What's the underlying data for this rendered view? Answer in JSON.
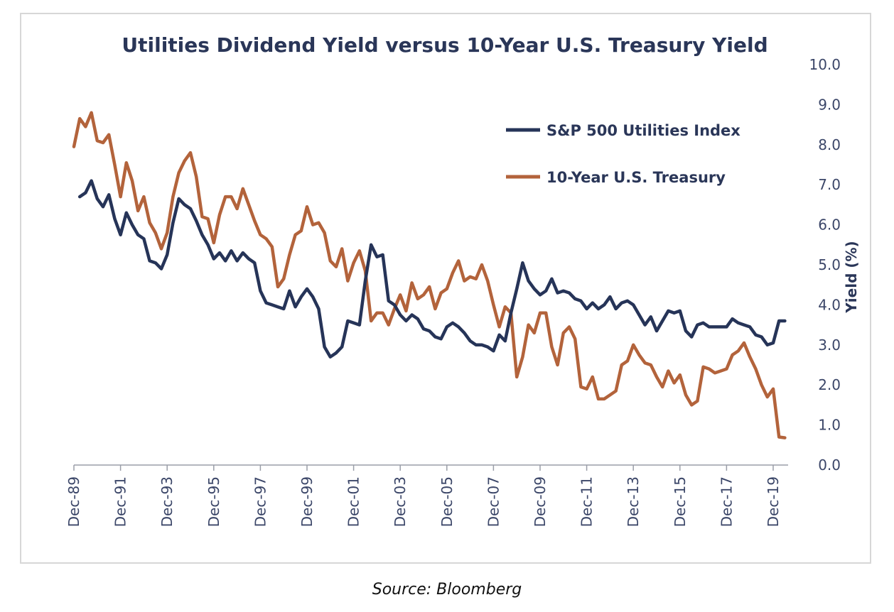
{
  "source": "Source: Bloomberg",
  "colors": {
    "utilities": "#263458",
    "treasury": "#b3633b",
    "axis": "#9a9ea8",
    "text": "#2a3658"
  },
  "chart_data": {
    "type": "line",
    "title": "Utilities Dividend Yield versus 10-Year U.S. Treasury Yield",
    "xlabel": "",
    "ylabel": "Yield (%)",
    "y_axis_side": "right",
    "ylim": [
      0,
      10
    ],
    "yticks": [
      "0.0",
      "1.0",
      "2.0",
      "3.0",
      "4.0",
      "5.0",
      "6.0",
      "7.0",
      "8.0",
      "9.0",
      "10.0"
    ],
    "xlim": [
      1989.92,
      2020.5
    ],
    "xticks": [
      {
        "x": 1989.92,
        "label": "Dec-89"
      },
      {
        "x": 1991.92,
        "label": "Dec-91"
      },
      {
        "x": 1993.92,
        "label": "Dec-93"
      },
      {
        "x": 1995.92,
        "label": "Dec-95"
      },
      {
        "x": 1997.92,
        "label": "Dec-97"
      },
      {
        "x": 1999.92,
        "label": "Dec-99"
      },
      {
        "x": 2001.92,
        "label": "Dec-01"
      },
      {
        "x": 2003.92,
        "label": "Dec-03"
      },
      {
        "x": 2005.92,
        "label": "Dec-05"
      },
      {
        "x": 2007.92,
        "label": "Dec-07"
      },
      {
        "x": 2009.92,
        "label": "Dec-09"
      },
      {
        "x": 2011.92,
        "label": "Dec-11"
      },
      {
        "x": 2013.92,
        "label": "Dec-13"
      },
      {
        "x": 2015.92,
        "label": "Dec-15"
      },
      {
        "x": 2017.92,
        "label": "Dec-17"
      },
      {
        "x": 2019.92,
        "label": "Dec-19"
      }
    ],
    "legend": "upper-right-inside",
    "grid": false,
    "series": [
      {
        "name": "S&P 500 Utilities Index",
        "color": "#263458",
        "points": [
          [
            1990.17,
            6.7
          ],
          [
            1990.42,
            6.8
          ],
          [
            1990.67,
            7.1
          ],
          [
            1990.92,
            6.65
          ],
          [
            1991.17,
            6.45
          ],
          [
            1991.42,
            6.75
          ],
          [
            1991.67,
            6.15
          ],
          [
            1991.92,
            5.75
          ],
          [
            1992.17,
            6.3
          ],
          [
            1992.42,
            6.0
          ],
          [
            1992.67,
            5.75
          ],
          [
            1992.92,
            5.65
          ],
          [
            1993.17,
            5.1
          ],
          [
            1993.42,
            5.05
          ],
          [
            1993.67,
            4.9
          ],
          [
            1993.92,
            5.25
          ],
          [
            1994.17,
            6.05
          ],
          [
            1994.42,
            6.65
          ],
          [
            1994.67,
            6.5
          ],
          [
            1994.92,
            6.4
          ],
          [
            1995.17,
            6.1
          ],
          [
            1995.42,
            5.75
          ],
          [
            1995.67,
            5.5
          ],
          [
            1995.92,
            5.15
          ],
          [
            1996.17,
            5.3
          ],
          [
            1996.42,
            5.1
          ],
          [
            1996.67,
            5.35
          ],
          [
            1996.92,
            5.1
          ],
          [
            1997.17,
            5.3
          ],
          [
            1997.42,
            5.15
          ],
          [
            1997.67,
            5.05
          ],
          [
            1997.92,
            4.35
          ],
          [
            1998.17,
            4.05
          ],
          [
            1998.42,
            4.0
          ],
          [
            1998.67,
            3.95
          ],
          [
            1998.92,
            3.9
          ],
          [
            1999.17,
            4.35
          ],
          [
            1999.42,
            3.95
          ],
          [
            1999.67,
            4.2
          ],
          [
            1999.92,
            4.4
          ],
          [
            2000.17,
            4.2
          ],
          [
            2000.42,
            3.9
          ],
          [
            2000.67,
            2.95
          ],
          [
            2000.92,
            2.7
          ],
          [
            2001.17,
            2.8
          ],
          [
            2001.42,
            2.95
          ],
          [
            2001.67,
            3.6
          ],
          [
            2001.92,
            3.55
          ],
          [
            2002.17,
            3.5
          ],
          [
            2002.42,
            4.6
          ],
          [
            2002.67,
            5.5
          ],
          [
            2002.92,
            5.2
          ],
          [
            2003.17,
            5.25
          ],
          [
            2003.42,
            4.1
          ],
          [
            2003.67,
            4.0
          ],
          [
            2003.92,
            3.75
          ],
          [
            2004.17,
            3.6
          ],
          [
            2004.42,
            3.75
          ],
          [
            2004.67,
            3.65
          ],
          [
            2004.92,
            3.4
          ],
          [
            2005.17,
            3.35
          ],
          [
            2005.42,
            3.2
          ],
          [
            2005.67,
            3.15
          ],
          [
            2005.92,
            3.45
          ],
          [
            2006.17,
            3.55
          ],
          [
            2006.42,
            3.45
          ],
          [
            2006.67,
            3.3
          ],
          [
            2006.92,
            3.1
          ],
          [
            2007.17,
            3.0
          ],
          [
            2007.42,
            3.0
          ],
          [
            2007.67,
            2.95
          ],
          [
            2007.92,
            2.85
          ],
          [
            2008.17,
            3.25
          ],
          [
            2008.42,
            3.1
          ],
          [
            2008.67,
            3.8
          ],
          [
            2008.92,
            4.4
          ],
          [
            2009.17,
            5.05
          ],
          [
            2009.42,
            4.6
          ],
          [
            2009.67,
            4.4
          ],
          [
            2009.92,
            4.25
          ],
          [
            2010.17,
            4.35
          ],
          [
            2010.42,
            4.65
          ],
          [
            2010.67,
            4.3
          ],
          [
            2010.92,
            4.35
          ],
          [
            2011.17,
            4.3
          ],
          [
            2011.42,
            4.15
          ],
          [
            2011.67,
            4.1
          ],
          [
            2011.92,
            3.9
          ],
          [
            2012.17,
            4.05
          ],
          [
            2012.42,
            3.9
          ],
          [
            2012.67,
            4.0
          ],
          [
            2012.92,
            4.2
          ],
          [
            2013.17,
            3.9
          ],
          [
            2013.42,
            4.05
          ],
          [
            2013.67,
            4.1
          ],
          [
            2013.92,
            4.0
          ],
          [
            2014.17,
            3.75
          ],
          [
            2014.42,
            3.5
          ],
          [
            2014.67,
            3.7
          ],
          [
            2014.92,
            3.35
          ],
          [
            2015.17,
            3.6
          ],
          [
            2015.42,
            3.85
          ],
          [
            2015.67,
            3.8
          ],
          [
            2015.92,
            3.85
          ],
          [
            2016.17,
            3.35
          ],
          [
            2016.42,
            3.2
          ],
          [
            2016.67,
            3.5
          ],
          [
            2016.92,
            3.55
          ],
          [
            2017.17,
            3.45
          ],
          [
            2017.42,
            3.45
          ],
          [
            2017.67,
            3.45
          ],
          [
            2017.92,
            3.45
          ],
          [
            2018.17,
            3.65
          ],
          [
            2018.42,
            3.55
          ],
          [
            2018.67,
            3.5
          ],
          [
            2018.92,
            3.45
          ],
          [
            2019.17,
            3.25
          ],
          [
            2019.42,
            3.2
          ],
          [
            2019.67,
            3.0
          ],
          [
            2019.92,
            3.05
          ],
          [
            2020.17,
            3.6
          ],
          [
            2020.42,
            3.6
          ]
        ]
      },
      {
        "name": "10-Year U.S. Treasury",
        "color": "#b3633b",
        "points": [
          [
            1989.92,
            7.95
          ],
          [
            1990.17,
            8.65
          ],
          [
            1990.42,
            8.45
          ],
          [
            1990.67,
            8.8
          ],
          [
            1990.92,
            8.1
          ],
          [
            1991.17,
            8.05
          ],
          [
            1991.42,
            8.25
          ],
          [
            1991.67,
            7.5
          ],
          [
            1991.92,
            6.7
          ],
          [
            1992.17,
            7.55
          ],
          [
            1992.42,
            7.1
          ],
          [
            1992.67,
            6.35
          ],
          [
            1992.92,
            6.7
          ],
          [
            1993.17,
            6.05
          ],
          [
            1993.42,
            5.8
          ],
          [
            1993.67,
            5.4
          ],
          [
            1993.92,
            5.8
          ],
          [
            1994.17,
            6.7
          ],
          [
            1994.42,
            7.3
          ],
          [
            1994.67,
            7.6
          ],
          [
            1994.92,
            7.8
          ],
          [
            1995.17,
            7.2
          ],
          [
            1995.42,
            6.2
          ],
          [
            1995.67,
            6.15
          ],
          [
            1995.92,
            5.55
          ],
          [
            1996.17,
            6.25
          ],
          [
            1996.42,
            6.7
          ],
          [
            1996.67,
            6.7
          ],
          [
            1996.92,
            6.4
          ],
          [
            1997.17,
            6.9
          ],
          [
            1997.42,
            6.5
          ],
          [
            1997.67,
            6.1
          ],
          [
            1997.92,
            5.75
          ],
          [
            1998.17,
            5.65
          ],
          [
            1998.42,
            5.45
          ],
          [
            1998.67,
            4.45
          ],
          [
            1998.92,
            4.65
          ],
          [
            1999.17,
            5.25
          ],
          [
            1999.42,
            5.75
          ],
          [
            1999.67,
            5.85
          ],
          [
            1999.92,
            6.45
          ],
          [
            2000.17,
            6.0
          ],
          [
            2000.42,
            6.05
          ],
          [
            2000.67,
            5.8
          ],
          [
            2000.92,
            5.1
          ],
          [
            2001.17,
            4.95
          ],
          [
            2001.42,
            5.4
          ],
          [
            2001.67,
            4.6
          ],
          [
            2001.92,
            5.05
          ],
          [
            2002.17,
            5.35
          ],
          [
            2002.42,
            4.85
          ],
          [
            2002.67,
            3.6
          ],
          [
            2002.92,
            3.8
          ],
          [
            2003.17,
            3.8
          ],
          [
            2003.42,
            3.5
          ],
          [
            2003.67,
            3.9
          ],
          [
            2003.92,
            4.25
          ],
          [
            2004.17,
            3.85
          ],
          [
            2004.42,
            4.55
          ],
          [
            2004.67,
            4.15
          ],
          [
            2004.92,
            4.25
          ],
          [
            2005.17,
            4.45
          ],
          [
            2005.42,
            3.9
          ],
          [
            2005.67,
            4.3
          ],
          [
            2005.92,
            4.4
          ],
          [
            2006.17,
            4.8
          ],
          [
            2006.42,
            5.1
          ],
          [
            2006.67,
            4.6
          ],
          [
            2006.92,
            4.7
          ],
          [
            2007.17,
            4.65
          ],
          [
            2007.42,
            5.0
          ],
          [
            2007.67,
            4.6
          ],
          [
            2007.92,
            4.0
          ],
          [
            2008.17,
            3.45
          ],
          [
            2008.42,
            3.95
          ],
          [
            2008.67,
            3.8
          ],
          [
            2008.92,
            2.2
          ],
          [
            2009.17,
            2.7
          ],
          [
            2009.42,
            3.5
          ],
          [
            2009.67,
            3.3
          ],
          [
            2009.92,
            3.8
          ],
          [
            2010.17,
            3.8
          ],
          [
            2010.42,
            2.95
          ],
          [
            2010.67,
            2.5
          ],
          [
            2010.92,
            3.3
          ],
          [
            2011.17,
            3.45
          ],
          [
            2011.42,
            3.15
          ],
          [
            2011.67,
            1.95
          ],
          [
            2011.92,
            1.9
          ],
          [
            2012.17,
            2.2
          ],
          [
            2012.42,
            1.65
          ],
          [
            2012.67,
            1.65
          ],
          [
            2012.92,
            1.75
          ],
          [
            2013.17,
            1.85
          ],
          [
            2013.42,
            2.5
          ],
          [
            2013.67,
            2.6
          ],
          [
            2013.92,
            3.0
          ],
          [
            2014.17,
            2.75
          ],
          [
            2014.42,
            2.55
          ],
          [
            2014.67,
            2.5
          ],
          [
            2014.92,
            2.2
          ],
          [
            2015.17,
            1.95
          ],
          [
            2015.42,
            2.35
          ],
          [
            2015.67,
            2.05
          ],
          [
            2015.92,
            2.25
          ],
          [
            2016.17,
            1.75
          ],
          [
            2016.42,
            1.5
          ],
          [
            2016.67,
            1.6
          ],
          [
            2016.92,
            2.45
          ],
          [
            2017.17,
            2.4
          ],
          [
            2017.42,
            2.3
          ],
          [
            2017.67,
            2.35
          ],
          [
            2017.92,
            2.4
          ],
          [
            2018.17,
            2.75
          ],
          [
            2018.42,
            2.85
          ],
          [
            2018.67,
            3.05
          ],
          [
            2018.92,
            2.7
          ],
          [
            2019.17,
            2.4
          ],
          [
            2019.42,
            2.0
          ],
          [
            2019.67,
            1.7
          ],
          [
            2019.92,
            1.9
          ],
          [
            2020.17,
            0.7
          ],
          [
            2020.42,
            0.68
          ]
        ]
      }
    ]
  }
}
